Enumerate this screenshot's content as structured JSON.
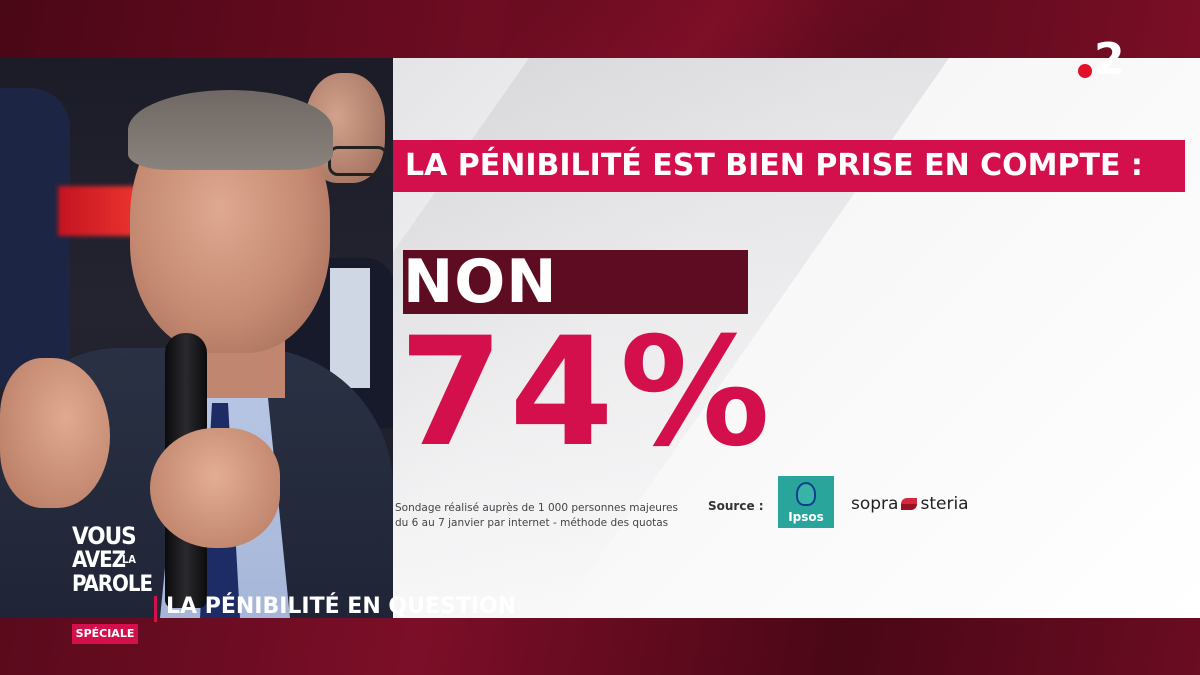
{
  "channel": {
    "logo_text": "2"
  },
  "graphic": {
    "headline": "LA PÉNIBILITÉ EST BIEN PRISE EN COMPTE :",
    "answer": "NON",
    "percentage": "74%",
    "survey_note_line1": "Sondage réalisé auprès de 1 000 personnes majeures",
    "survey_note_line2": "du 6 au 7 janvier par internet - méthode des quotas",
    "source_label": "Source :",
    "ipsos_logo_text": "Ipsos",
    "sopra_left": "sopra",
    "sopra_right": "steria"
  },
  "show": {
    "line1": "VOUS",
    "line2": "AVEZ",
    "line2b": "LA",
    "line3": "PAROLE",
    "badge": "SPÉCIALE",
    "lower_third": "LA PÉNIBILITÉ EN QUESTION"
  },
  "colors": {
    "accent": "#d4104c",
    "dark_maroon": "#5e0c22",
    "frame": "#3a0612",
    "channel_dot": "#e3102c"
  }
}
